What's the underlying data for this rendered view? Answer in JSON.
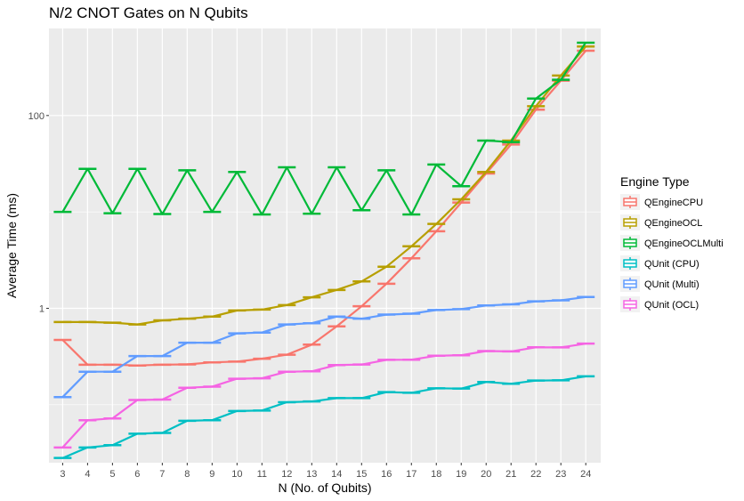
{
  "chart_data": {
    "type": "line",
    "title": "N/2 CNOT Gates on N Qubits",
    "xlabel": "N (No. of Qubits)",
    "ylabel": "Average Time (ms)",
    "y_scale": "log10",
    "ylim": [
      0.025,
      800
    ],
    "xlim": [
      2.45,
      24.6
    ],
    "x": [
      3,
      4,
      5,
      6,
      7,
      8,
      9,
      10,
      11,
      12,
      13,
      14,
      15,
      16,
      17,
      18,
      19,
      20,
      21,
      22,
      23,
      24
    ],
    "y_tick_labels": [
      "1",
      "100"
    ],
    "y_tick_values": [
      1,
      100
    ],
    "x_tick_labels": [
      "3",
      "4",
      "5",
      "6",
      "7",
      "8",
      "9",
      "10",
      "11",
      "12",
      "13",
      "14",
      "15",
      "16",
      "17",
      "18",
      "19",
      "20",
      "21",
      "22",
      "23",
      "24"
    ],
    "grid": true,
    "legend_title": "Engine Type",
    "legend_position": "right",
    "series": [
      {
        "name": "QEngineCPU",
        "color": "#F8766D",
        "values": [
          0.47,
          0.26,
          0.26,
          0.255,
          0.26,
          0.262,
          0.275,
          0.28,
          0.3,
          0.33,
          0.42,
          0.65,
          1.05,
          1.8,
          3.3,
          6.3,
          12.5,
          25,
          50,
          115,
          230,
          470
        ]
      },
      {
        "name": "QEngineOCL",
        "color": "#B79F00",
        "values": [
          0.72,
          0.72,
          0.71,
          0.68,
          0.75,
          0.78,
          0.82,
          0.95,
          0.97,
          1.08,
          1.3,
          1.55,
          1.9,
          2.7,
          4.4,
          7.5,
          13.5,
          26,
          55,
          125,
          260,
          520
        ]
      },
      {
        "name": "QEngineOCLMulti",
        "color": "#00BA38",
        "values": [
          10,
          28,
          9.7,
          28,
          9.5,
          27,
          10,
          26,
          9.4,
          29,
          9.6,
          29,
          10.4,
          27,
          9.4,
          31,
          18.5,
          55,
          53,
          150,
          235,
          570
        ]
      },
      {
        "name": "QUnit (CPU)",
        "color": "#00BFC4",
        "values": [
          0.028,
          0.036,
          0.038,
          0.05,
          0.051,
          0.068,
          0.069,
          0.086,
          0.087,
          0.106,
          0.108,
          0.117,
          0.117,
          0.135,
          0.133,
          0.148,
          0.147,
          0.172,
          0.165,
          0.178,
          0.179,
          0.197
        ]
      },
      {
        "name": "QUnit (Multi)",
        "color": "#619CFF",
        "values": [
          0.12,
          0.22,
          0.22,
          0.32,
          0.32,
          0.44,
          0.44,
          0.55,
          0.56,
          0.68,
          0.7,
          0.82,
          0.78,
          0.86,
          0.88,
          0.96,
          0.98,
          1.07,
          1.1,
          1.18,
          1.21,
          1.31
        ]
      },
      {
        "name": "QUnit (OCL)",
        "color": "#F564E3",
        "values": [
          0.036,
          0.069,
          0.072,
          0.112,
          0.113,
          0.15,
          0.154,
          0.186,
          0.188,
          0.22,
          0.222,
          0.258,
          0.261,
          0.292,
          0.293,
          0.322,
          0.326,
          0.36,
          0.357,
          0.394,
          0.393,
          0.43
        ]
      }
    ]
  }
}
